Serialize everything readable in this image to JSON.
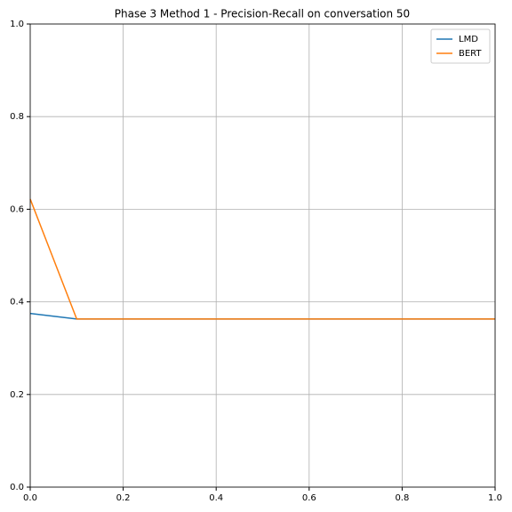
{
  "chart_data": {
    "type": "line",
    "title": "Phase 3 Method 1 - Precision-Recall on conversation 50",
    "x": [
      0,
      0.1,
      0.2,
      0.3,
      0.4,
      0.5,
      0.6,
      0.7,
      0.8,
      0.9,
      1.0
    ],
    "series": [
      {
        "name": "LMD",
        "color": "#1f77b4",
        "values": [
          0.375,
          0.363,
          0.363,
          0.363,
          0.363,
          0.363,
          0.363,
          0.363,
          0.363,
          0.363,
          0.363
        ]
      },
      {
        "name": "BERT",
        "color": "#ff7f0e",
        "values": [
          0.622,
          0.363,
          0.363,
          0.363,
          0.363,
          0.363,
          0.363,
          0.363,
          0.363,
          0.363,
          0.363
        ]
      }
    ],
    "xlim": [
      0,
      1
    ],
    "ylim": [
      0,
      1
    ],
    "xticks": [
      {
        "value": 0,
        "label": "0.0"
      },
      0.2,
      0.4,
      0.6,
      0.8,
      {
        "value": 1,
        "label": "1.0"
      }
    ],
    "yticks": [
      {
        "value": 0,
        "label": "0.0"
      },
      0.2,
      0.4,
      0.6,
      0.8,
      {
        "value": 1,
        "label": "1.0"
      }
    ],
    "grid": true,
    "legend": "upper-right"
  }
}
